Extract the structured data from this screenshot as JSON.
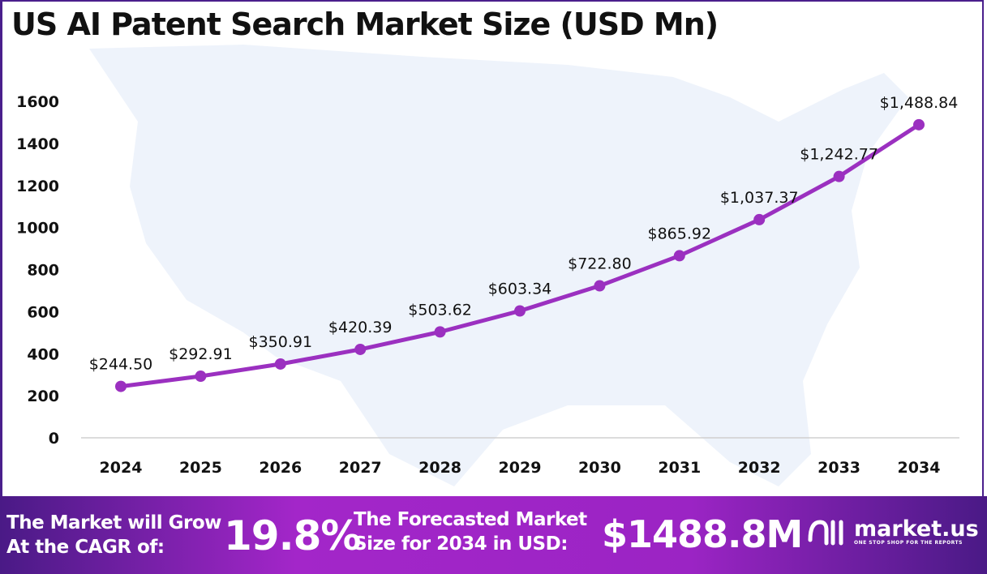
{
  "chart_data": {
    "type": "line",
    "title": "US AI Patent Search Market Size (USD Mn)",
    "categories": [
      "2024",
      "2025",
      "2026",
      "2027",
      "2028",
      "2029",
      "2030",
      "2031",
      "2032",
      "2033",
      "2034"
    ],
    "values": [
      244.5,
      292.91,
      350.91,
      420.39,
      503.62,
      603.34,
      722.8,
      865.92,
      1037.37,
      1242.77,
      1488.84
    ],
    "data_labels": [
      "$244.50",
      "$292.91",
      "$350.91",
      "$420.39",
      "$503.62",
      "$603.34",
      "$722.80",
      "$865.92",
      "$1,037.37",
      "$1,242.77",
      "$1,488.84"
    ],
    "yticks": [
      "0",
      "200",
      "400",
      "600",
      "800",
      "1000",
      "1200",
      "1400",
      "1600"
    ],
    "ylim": [
      0,
      1600
    ],
    "grid": false,
    "line_color": "#9b30c0"
  },
  "footer": {
    "cagr_label_line1": "The Market will Grow",
    "cagr_label_line2": "At the CAGR of:",
    "cagr_value": "19.8%",
    "forecast_label_line1": "The Forecasted Market",
    "forecast_label_line2": "Size for 2034 in USD:",
    "forecast_value": "$1488.8M",
    "brand": "market.us",
    "tagline": "ONE STOP SHOP FOR THE REPORTS"
  }
}
